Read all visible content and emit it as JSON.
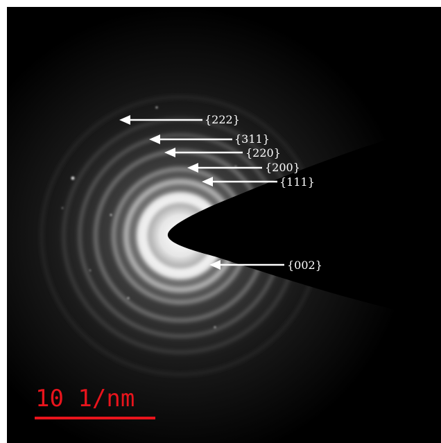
{
  "image": {
    "subject": "electron diffraction ring pattern",
    "reflections": [
      {
        "id": "r222",
        "label": "{222}"
      },
      {
        "id": "r311",
        "label": "{311}"
      },
      {
        "id": "r220",
        "label": "{220}"
      },
      {
        "id": "r200",
        "label": "{200}"
      },
      {
        "id": "r111",
        "label": "{111}"
      },
      {
        "id": "r002",
        "label": "{002}"
      }
    ],
    "scale_bar": {
      "label": "10 1/nm",
      "color": "#e8141c"
    },
    "colors": {
      "background": "#000000",
      "annotation": "#ffffff",
      "beam_stop": "#000000"
    }
  }
}
